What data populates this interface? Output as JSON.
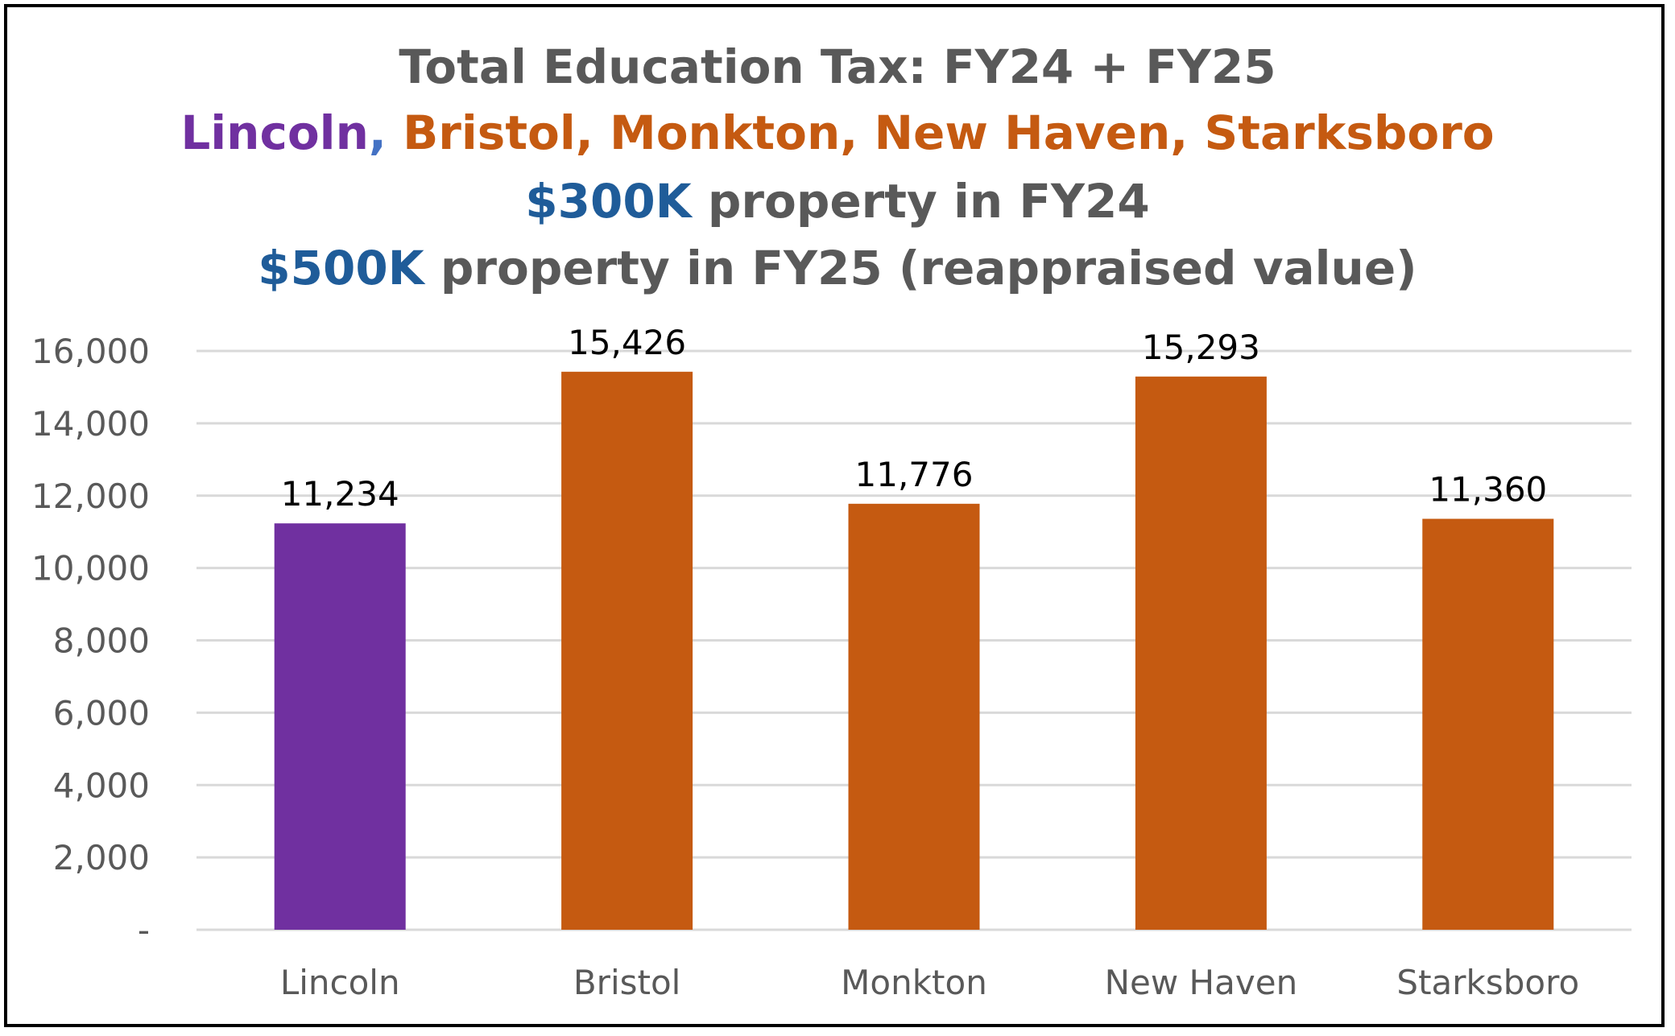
{
  "title": {
    "line1": "Total Education Tax: FY24 + FY25",
    "line2_lincoln": "Lincoln",
    "line2_comma": ",",
    "line2_others": " Bristol, Monkton, New Haven, Starksboro",
    "line3_value": "$300K",
    "line3_rest": " property in FY24",
    "line4_value": "$500K",
    "line4_rest": " property in FY25 (reappraised value)"
  },
  "colors": {
    "title_gray": "#595959",
    "lincoln_purple": "#7030a0",
    "others_orange": "#c55a11",
    "value_blue": "#1f5c99",
    "comma_blue": "#4472c4",
    "grid": "#d9d9d9",
    "axis": "#d9d9d9"
  },
  "chart_data": {
    "type": "bar",
    "title": "Total Education Tax: FY24 + FY25",
    "categories": [
      "Lincoln",
      "Bristol",
      "Monkton",
      "New Haven",
      "Starksboro"
    ],
    "values": [
      11234,
      15426,
      11776,
      15293,
      11360
    ],
    "value_labels": [
      "11,234",
      "15,426",
      "11,776",
      "15,293",
      "11,360"
    ],
    "bar_colors": [
      "#7030a0",
      "#c55a11",
      "#c55a11",
      "#c55a11",
      "#c55a11"
    ],
    "ylim": [
      0,
      16000
    ],
    "yticks": [
      0,
      2000,
      4000,
      6000,
      8000,
      10000,
      12000,
      14000,
      16000
    ],
    "ytick_labels": [
      "-",
      "2,000",
      "4,000",
      "6,000",
      "8,000",
      "10,000",
      "12,000",
      "14,000",
      "16,000"
    ],
    "xlabel": "",
    "ylabel": "",
    "grid": true,
    "legend": "none"
  }
}
